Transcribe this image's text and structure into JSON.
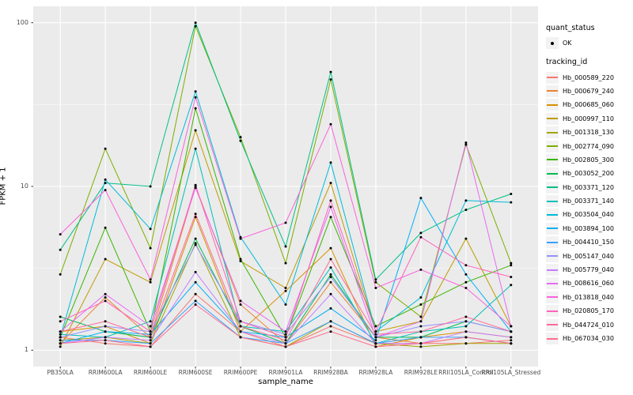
{
  "figure": {
    "ylabel": "FPKM + 1",
    "xlabel": "sample_name",
    "panel_bg": "#EBEBEB",
    "grid_color": "#FFFFFF",
    "tick_label_color": "#4D4D4D",
    "point_color": "#000000",
    "y_tick_labels": [
      "1",
      "10",
      "100"
    ]
  },
  "legend": {
    "quant_status_title": "quant_status",
    "quant_status_item": "OK",
    "tracking_id_title": "tracking_id",
    "key_bg": "#F2F2F2"
  },
  "chart_data": {
    "type": "line",
    "title": "",
    "xlabel": "sample_name",
    "ylabel": "FPKM + 1",
    "yscale": "log10",
    "ylim": [
      1,
      110
    ],
    "y_major_ticks": [
      1,
      10,
      100
    ],
    "y_minor_ticks": [
      3.1623,
      31.623
    ],
    "grid": true,
    "legend_position": "right",
    "point_color": "#000000",
    "x_categories": [
      "PB350LA",
      "RRIM600LA",
      "RRIM600LE",
      "RRIM600SE",
      "RRIM600PE",
      "RRIM901LA",
      "RRIM928BA",
      "RRIM928LA",
      "RRIM928LE",
      "RRII105LA_Control",
      "RRII105LA_Stressed"
    ],
    "series": [
      {
        "name": "Hb_000589_220",
        "color": "#F8766D",
        "values": [
          1.2,
          1.1,
          1.05,
          2.2,
          1.3,
          1.05,
          1.4,
          1.1,
          1.1,
          1.1,
          1.15
        ]
      },
      {
        "name": "Hb_000679_240",
        "color": "#EA8331",
        "values": [
          1.1,
          2.1,
          1.2,
          10,
          1.9,
          1.1,
          2.6,
          1.2,
          1.1,
          1.2,
          1.1
        ]
      },
      {
        "name": "Hb_000685_060",
        "color": "#D89000",
        "values": [
          1.3,
          1.4,
          1.1,
          6.5,
          1.3,
          2.3,
          4.2,
          1.05,
          1.2,
          1.3,
          1.2
        ]
      },
      {
        "name": "Hb_000997_110",
        "color": "#C09B00",
        "values": [
          1.05,
          3.6,
          2.6,
          22,
          3.5,
          2.4,
          10.5,
          1.3,
          1.5,
          4.8,
          1.4
        ]
      },
      {
        "name": "Hb_001318_130",
        "color": "#A3A500",
        "values": [
          1.15,
          1.2,
          1.1,
          4.5,
          1.2,
          1.05,
          1.5,
          1.1,
          1.05,
          1.1,
          1.1
        ]
      },
      {
        "name": "Hb_002774_090",
        "color": "#7CAE00",
        "values": [
          2.9,
          17,
          4.2,
          95,
          20,
          3.4,
          45,
          2.6,
          1.6,
          18,
          3.4
        ]
      },
      {
        "name": "Hb_002805_300",
        "color": "#39B600",
        "values": [
          1.2,
          5.6,
          1.3,
          30,
          3.6,
          1.2,
          6.5,
          1.4,
          1.9,
          2.6,
          3.3
        ]
      },
      {
        "name": "Hb_003052_200",
        "color": "#00BB4E",
        "values": [
          1.6,
          1.3,
          1.2,
          4.8,
          1.4,
          1.1,
          2.9,
          1.2,
          1.2,
          1.5,
          1.3
        ]
      },
      {
        "name": "Hb_003371_120",
        "color": "#00C087",
        "values": [
          4.1,
          10.5,
          10,
          100,
          19,
          4.3,
          50,
          2.7,
          5.2,
          7.2,
          9
        ]
      },
      {
        "name": "Hb_003371_140",
        "color": "#00C0B8",
        "values": [
          1.25,
          1.2,
          1.5,
          17,
          1.4,
          1.3,
          3.2,
          1.1,
          1.3,
          1.4,
          2.5
        ]
      },
      {
        "name": "Hb_003504_040",
        "color": "#00BCD8",
        "values": [
          1.2,
          11,
          5.5,
          38,
          4.9,
          1.9,
          14,
          1.3,
          2.1,
          8.2,
          8
        ]
      },
      {
        "name": "Hb_003894_100",
        "color": "#00B0F6",
        "values": [
          1.1,
          1.3,
          1.25,
          2.6,
          1.3,
          1.2,
          1.8,
          1.15,
          8.5,
          2.9,
          1.3
        ]
      },
      {
        "name": "Hb_004410_150",
        "color": "#35A2FF",
        "values": [
          1.15,
          1.15,
          1.1,
          2.0,
          1.2,
          1.1,
          1.5,
          1.1,
          1.2,
          1.2,
          1.1
        ]
      },
      {
        "name": "Hb_005147_040",
        "color": "#9590FF",
        "values": [
          1.2,
          1.4,
          1.3,
          4.4,
          1.5,
          1.25,
          2.8,
          1.2,
          1.4,
          1.5,
          1.3
        ]
      },
      {
        "name": "Hb_005779_040",
        "color": "#C77CFF",
        "values": [
          1.1,
          1.2,
          1.15,
          3.0,
          1.3,
          1.1,
          2.2,
          1.1,
          1.1,
          1.3,
          1.2
        ]
      },
      {
        "name": "Hb_008616_060",
        "color": "#E76BF3",
        "values": [
          1.3,
          2.2,
          1.4,
          9.8,
          2.0,
          1.3,
          7.5,
          1.2,
          1.5,
          18.5,
          1.4
        ]
      },
      {
        "name": "Hb_013818_040",
        "color": "#FA62DB",
        "values": [
          5.1,
          9.5,
          2.7,
          35,
          4.8,
          6.0,
          24,
          2.4,
          3.1,
          2.4,
          1.4
        ]
      },
      {
        "name": "Hb_020805_170",
        "color": "#FF62BC",
        "values": [
          1.5,
          2.0,
          1.3,
          10.2,
          1.5,
          1.2,
          8.2,
          1.3,
          4.9,
          3.3,
          2.8
        ]
      },
      {
        "name": "Hb_044724_010",
        "color": "#FF6A98",
        "values": [
          1.3,
          1.5,
          1.2,
          6.8,
          1.4,
          1.15,
          3.6,
          1.25,
          1.3,
          1.6,
          1.3
        ]
      },
      {
        "name": "Hb_067034_030",
        "color": "#FF6C90",
        "values": [
          1.1,
          1.15,
          1.05,
          1.9,
          1.2,
          1.05,
          1.3,
          1.05,
          1.1,
          1.2,
          1.1
        ]
      }
    ]
  }
}
